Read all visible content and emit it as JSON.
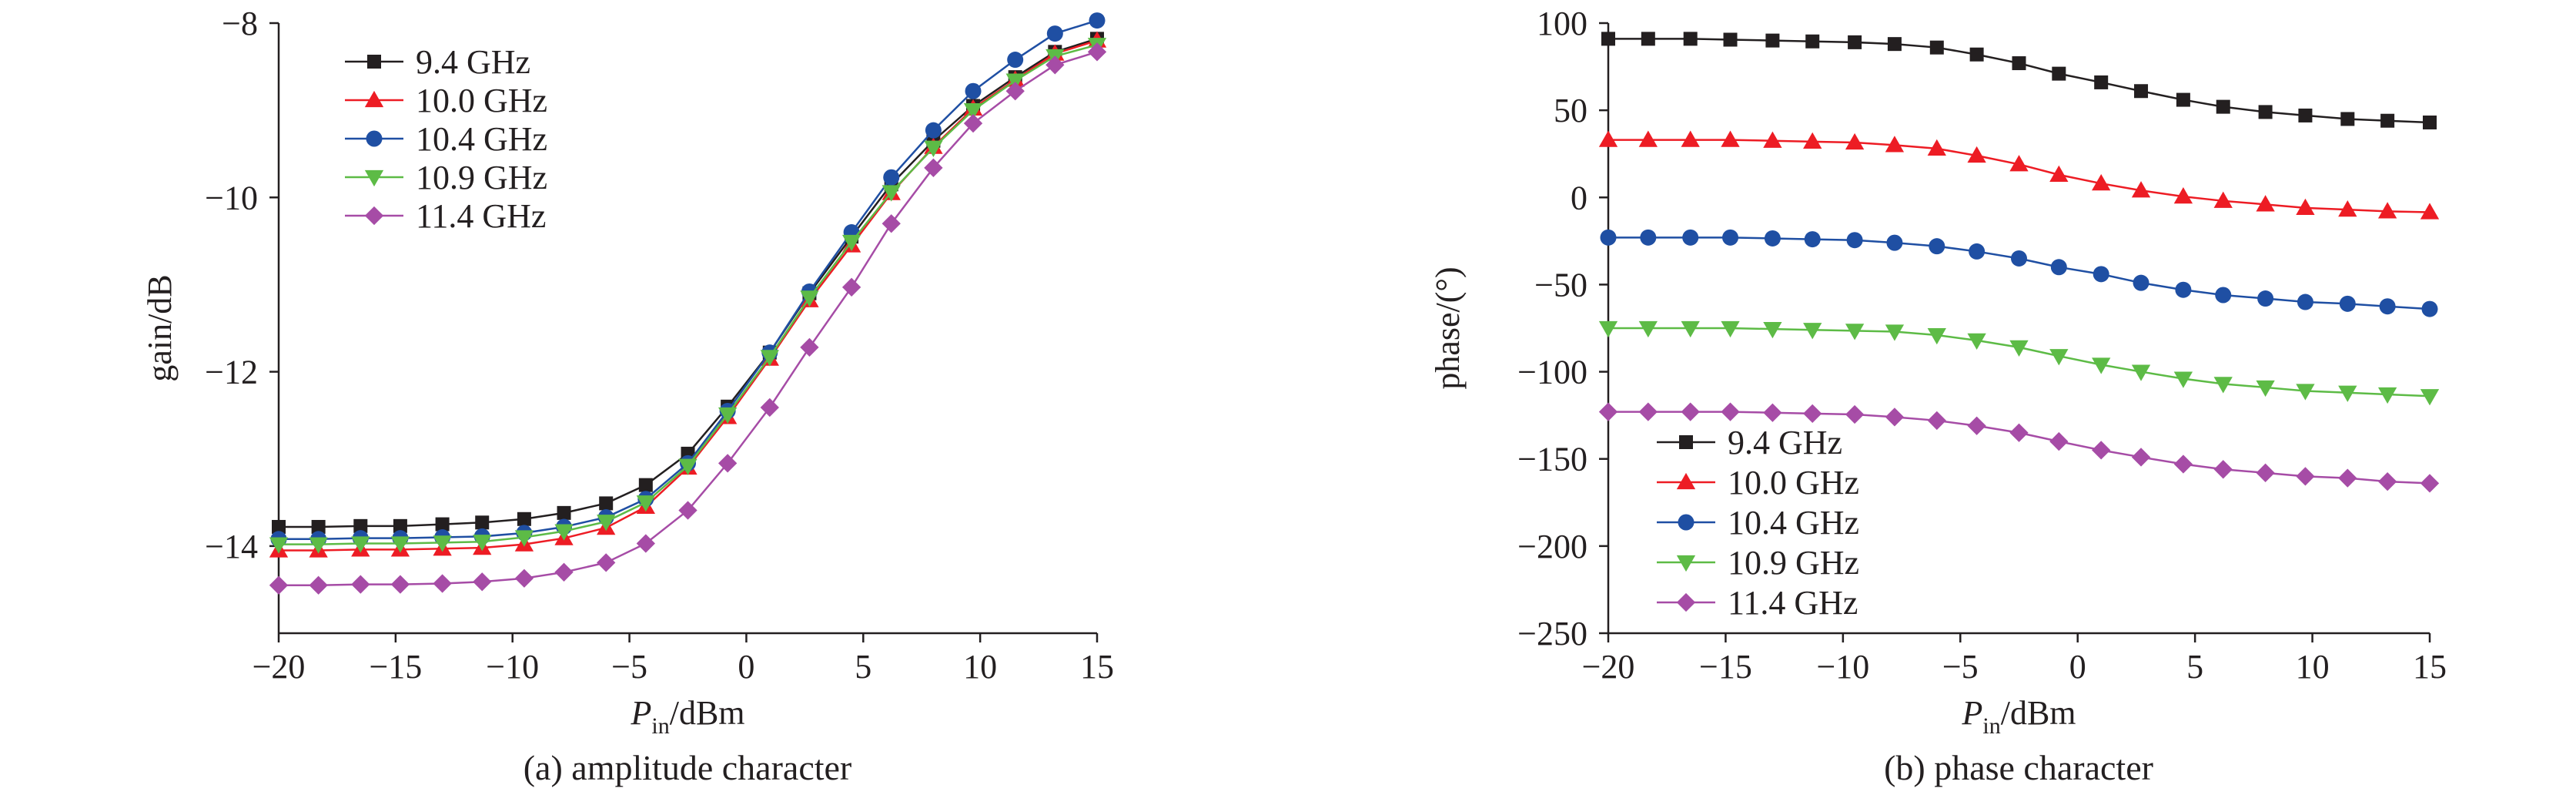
{
  "chart_data": [
    {
      "type": "line",
      "caption": "(a) amplitude character",
      "xlabel": {
        "main": "P",
        "sub": "in",
        "unit": "/dBm"
      },
      "ylabel": "gain/dB",
      "xlim": [
        -20,
        15
      ],
      "ylim": [
        -15,
        -8
      ],
      "xticks": [
        -20,
        -15,
        -10,
        -5,
        0,
        5,
        10,
        15
      ],
      "xtick_labels": [
        "−20",
        "−15",
        "−10",
        "−5",
        "0",
        "5",
        "10",
        "15"
      ],
      "yticks": [
        -14,
        -12,
        -10,
        -8
      ],
      "ytick_labels": [
        "−14",
        "−12",
        "−10",
        "−8"
      ],
      "legend_position": "top-left",
      "x": [
        -20,
        -18.3,
        -16.5,
        -14.8,
        -13,
        -11.3,
        -9.5,
        -7.8,
        -6,
        -4.3,
        -2.5,
        -0.8,
        1,
        2.7,
        4.5,
        6.2,
        8,
        9.7,
        11.5,
        13.2,
        15
      ],
      "series": [
        {
          "name": "9.4 GHz",
          "color": "#231f20",
          "marker": "square",
          "values": [
            -13.78,
            -13.78,
            -13.77,
            -13.77,
            -13.75,
            -13.73,
            -13.69,
            -13.62,
            -13.51,
            -13.3,
            -12.94,
            -12.4,
            -11.78,
            -11.1,
            -10.45,
            -9.85,
            -9.35,
            -8.95,
            -8.62,
            -8.33,
            -8.18
          ]
        },
        {
          "name": "10.0 GHz",
          "color": "#ed1c24",
          "marker": "triangle-up",
          "values": [
            -14.05,
            -14.05,
            -14.04,
            -14.04,
            -14.03,
            -14.02,
            -13.98,
            -13.91,
            -13.79,
            -13.55,
            -13.1,
            -12.52,
            -11.85,
            -11.18,
            -10.55,
            -9.95,
            -9.42,
            -8.98,
            -8.65,
            -8.35,
            -8.2
          ]
        },
        {
          "name": "10.4 GHz",
          "color": "#1f4fa3",
          "marker": "circle",
          "values": [
            -13.92,
            -13.92,
            -13.91,
            -13.91,
            -13.9,
            -13.89,
            -13.85,
            -13.78,
            -13.67,
            -13.46,
            -13.05,
            -12.45,
            -11.78,
            -11.08,
            -10.4,
            -9.77,
            -9.23,
            -8.78,
            -8.42,
            -8.12,
            -7.97
          ]
        },
        {
          "name": "10.9 GHz",
          "color": "#5dbb46",
          "marker": "triangle-down",
          "values": [
            -13.98,
            -13.98,
            -13.97,
            -13.97,
            -13.96,
            -13.95,
            -13.9,
            -13.83,
            -13.72,
            -13.5,
            -13.08,
            -12.49,
            -11.83,
            -11.15,
            -10.51,
            -9.94,
            -9.43,
            -9.0,
            -8.66,
            -8.38,
            -8.25
          ]
        },
        {
          "name": "11.4 GHz",
          "color": "#a64ca6",
          "marker": "diamond",
          "values": [
            -14.45,
            -14.45,
            -14.44,
            -14.44,
            -14.43,
            -14.41,
            -14.37,
            -14.3,
            -14.19,
            -13.97,
            -13.59,
            -13.05,
            -12.41,
            -11.72,
            -11.03,
            -10.3,
            -9.66,
            -9.15,
            -8.78,
            -8.48,
            -8.33
          ]
        }
      ]
    },
    {
      "type": "line",
      "caption": "(b) phase character",
      "xlabel": {
        "main": "P",
        "sub": "in",
        "unit": "/dBm"
      },
      "ylabel": "phase/(°)",
      "xlim": [
        -20,
        15
      ],
      "ylim": [
        -250,
        100
      ],
      "xticks": [
        -20,
        -15,
        -10,
        -5,
        0,
        5,
        10,
        15
      ],
      "xtick_labels": [
        "−20",
        "−15",
        "−10",
        "−5",
        "0",
        "5",
        "10",
        "15"
      ],
      "yticks": [
        -250,
        -200,
        -150,
        -100,
        -50,
        0,
        50,
        100
      ],
      "ytick_labels": [
        "−250",
        "−200",
        "−150",
        "−100",
        "−50",
        "0",
        "50",
        "100"
      ],
      "legend_position": "bottom-left",
      "x": [
        -20,
        -18.3,
        -16.5,
        -14.8,
        -13,
        -11.3,
        -9.5,
        -7.8,
        -6,
        -4.3,
        -2.5,
        -0.8,
        1,
        2.7,
        4.5,
        6.2,
        8,
        9.7,
        11.5,
        13.2,
        15
      ],
      "series": [
        {
          "name": "9.4 GHz",
          "color": "#231f20",
          "marker": "square",
          "values": [
            91,
            91,
            91,
            90.5,
            90,
            89.5,
            89,
            88,
            86,
            82,
            77,
            71,
            66,
            61,
            56,
            52,
            49,
            47,
            45,
            44,
            43
          ]
        },
        {
          "name": "10.0 GHz",
          "color": "#ed1c24",
          "marker": "triangle-up",
          "values": [
            33,
            33,
            33,
            33,
            32.5,
            32,
            31.5,
            30,
            28,
            24,
            19,
            13,
            8,
            4,
            0.5,
            -2,
            -4,
            -6,
            -7,
            -8,
            -8.5
          ]
        },
        {
          "name": "10.4 GHz",
          "color": "#1f4fa3",
          "marker": "circle",
          "values": [
            -23,
            -23,
            -23,
            -23,
            -23.5,
            -24,
            -24.5,
            -26,
            -28,
            -31,
            -35,
            -40,
            -44,
            -49,
            -53,
            -56,
            -58,
            -60,
            -61,
            -62.5,
            -64
          ]
        },
        {
          "name": "10.9 GHz",
          "color": "#5dbb46",
          "marker": "triangle-down",
          "values": [
            -75,
            -75,
            -75,
            -75,
            -75.5,
            -76,
            -76.5,
            -77,
            -79,
            -82,
            -86,
            -91,
            -96,
            -100,
            -104,
            -107,
            -109,
            -111,
            -112,
            -113,
            -114
          ]
        },
        {
          "name": "11.4 GHz",
          "color": "#a64ca6",
          "marker": "diamond",
          "values": [
            -123,
            -123,
            -123,
            -123,
            -123.5,
            -124,
            -124.5,
            -126,
            -128,
            -131,
            -135,
            -140,
            -145,
            -149,
            -153,
            -156,
            -158,
            -160,
            -161,
            -163,
            -164
          ]
        }
      ]
    }
  ]
}
